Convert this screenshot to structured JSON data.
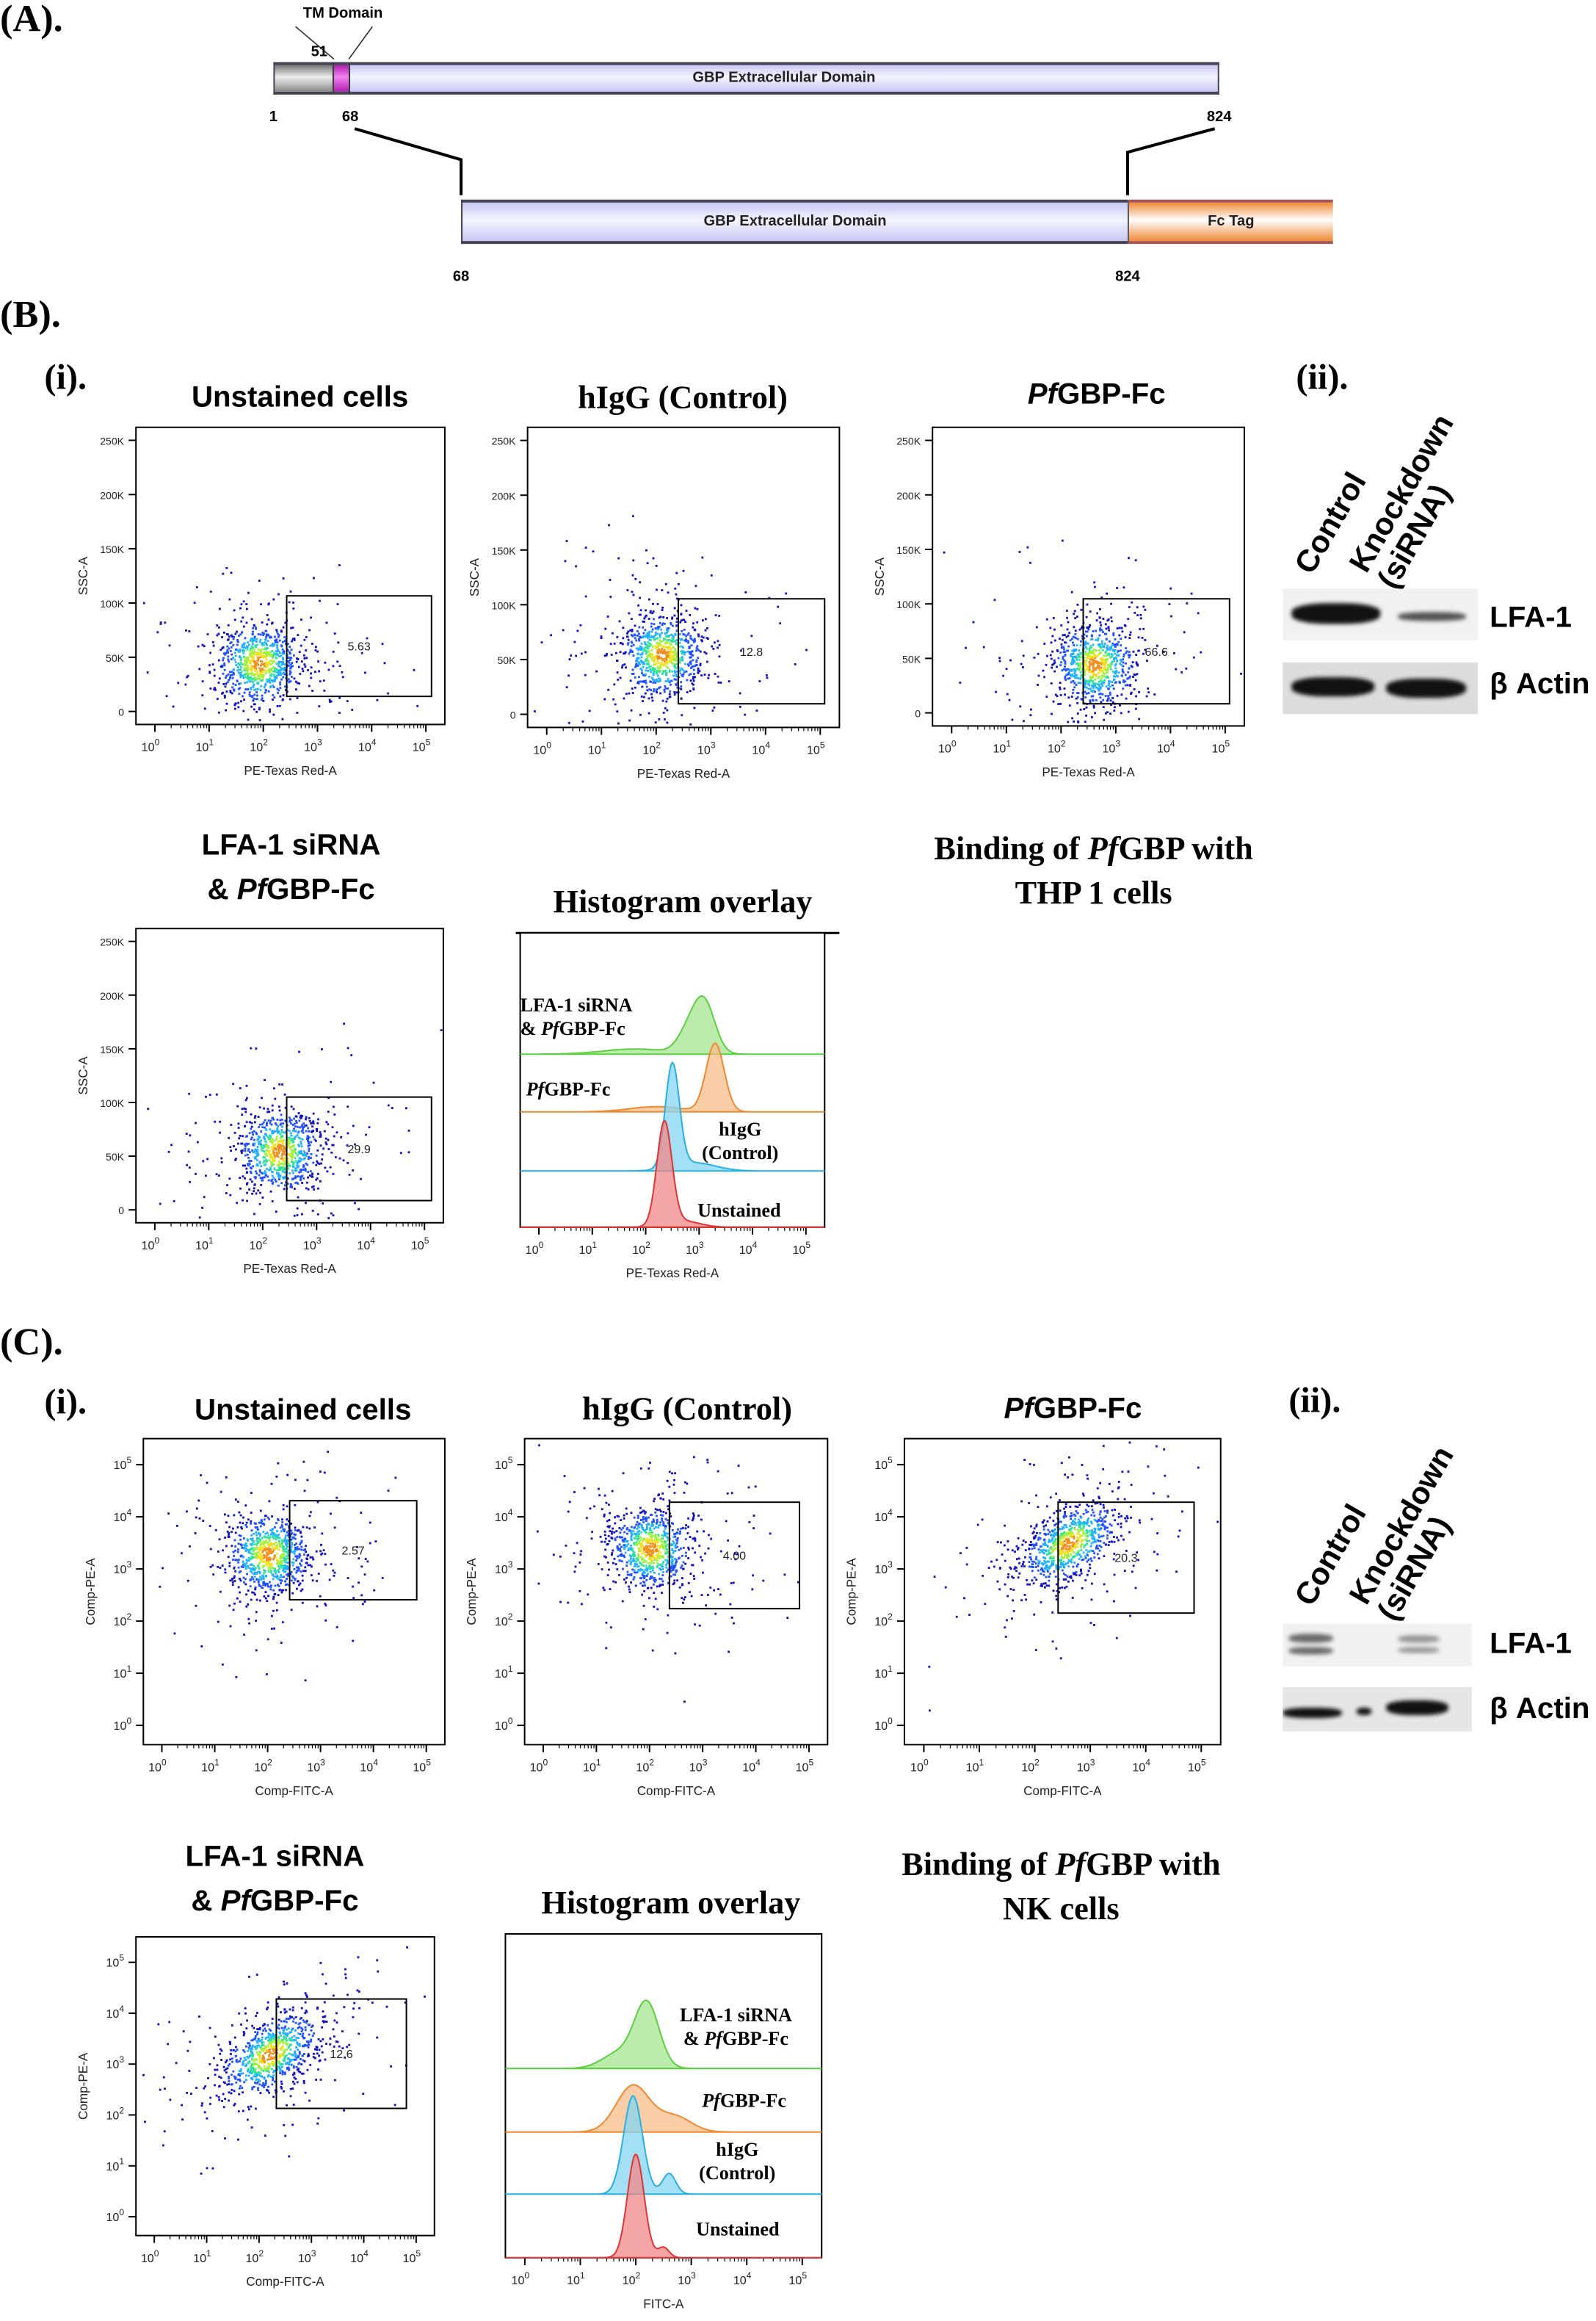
{
  "panel_a": {
    "label": "(A).",
    "tm_label": "TM Domain",
    "full_protein": {
      "start": "1",
      "tm_start": "51",
      "tm_end": "68",
      "end": "824",
      "domain_label": "GBP Extracellular Domain"
    },
    "construct": {
      "start": "68",
      "end": "824",
      "domain_label": "GBP Extracellular Domain",
      "tag_label": "Fc Tag"
    },
    "colors": {
      "signal": "#a8a8a8",
      "tm": "#d040d0",
      "extracellular": "#d8d8f8",
      "fc": "#f3a868"
    }
  },
  "panel_b": {
    "label": "(B).",
    "sub_i": "(i).",
    "sub_ii": "(ii).",
    "caption": {
      "line1_pre": "Binding of ",
      "line1_italic": "Pf",
      "line1_post": "GBP with",
      "line2": "THP 1 cells"
    },
    "blot": {
      "lane1": "Control",
      "lane2_line1": "Knockdown",
      "lane2_line2": "(siRNA)",
      "band1": "LFA-1",
      "band2": "β Actin"
    }
  },
  "panel_c": {
    "label": "(C).",
    "sub_i": "(i).",
    "sub_ii": "(ii).",
    "caption": {
      "line1_pre": "Binding of ",
      "line1_italic": "Pf",
      "line1_post": "GBP with",
      "line2": "NK cells"
    },
    "blot": {
      "lane1": "Control",
      "lane2_line1": "Knockdown",
      "lane2_line2": "(siRNA)",
      "band1": "LFA-1",
      "band2": "β Actin"
    }
  },
  "titles": {
    "unstained": "Unstained cells",
    "higg": "hIgG (Control)",
    "pf_italic": "Pf",
    "pf_post": "GBP-Fc",
    "lfa_line1": "LFA-1 siRNA",
    "lfa_line2_pre": "& ",
    "histogram": "Histogram overlay"
  },
  "chart_data": [
    {
      "id": "b-unstained",
      "type": "scatter",
      "xlabel": "PE-Texas Red-A",
      "ylabel": "SSC-A",
      "x_scale": "log",
      "x_tick_exponents": [
        0,
        1,
        2,
        3,
        4,
        5
      ],
      "y_ticks": [
        "0",
        "50K",
        "100K",
        "150K",
        "200K",
        "250K"
      ],
      "ylim": [
        0,
        262000
      ],
      "gate_percent": "5.63",
      "cluster_center": {
        "x_log10": 1.9,
        "y": 45000
      }
    },
    {
      "id": "b-higg",
      "type": "scatter",
      "xlabel": "PE-Texas Red-A",
      "ylabel": "SSC-A",
      "x_scale": "log",
      "x_tick_exponents": [
        0,
        1,
        2,
        3,
        4,
        5
      ],
      "y_ticks": [
        "0",
        "50K",
        "100K",
        "150K",
        "200K",
        "250K"
      ],
      "ylim": [
        0,
        262000
      ],
      "gate_percent": "12.8",
      "cluster_center": {
        "x_log10": 2.1,
        "y": 55000
      }
    },
    {
      "id": "b-pf",
      "type": "scatter",
      "xlabel": "PE-Texas Red-A",
      "ylabel": "SSC-A",
      "x_scale": "log",
      "x_tick_exponents": [
        0,
        1,
        2,
        3,
        4,
        5
      ],
      "y_ticks": [
        "0",
        "50K",
        "100K",
        "150K",
        "200K",
        "250K"
      ],
      "ylim": [
        0,
        262000
      ],
      "gate_percent": "66.6",
      "cluster_center": {
        "x_log10": 2.6,
        "y": 45000
      }
    },
    {
      "id": "b-lfa",
      "type": "scatter",
      "xlabel": "PE-Texas Red-A",
      "ylabel": "SSC-A",
      "x_scale": "log",
      "x_tick_exponents": [
        0,
        1,
        2,
        3,
        4,
        5
      ],
      "y_ticks": [
        "0",
        "50K",
        "100K",
        "150K",
        "200K",
        "250K"
      ],
      "ylim": [
        0,
        262000
      ],
      "gate_percent": "29.9",
      "cluster_center": {
        "x_log10": 2.3,
        "y": 55000
      }
    },
    {
      "id": "b-hist",
      "type": "area",
      "xlabel": "PE-Texas Red-A",
      "x_scale": "log",
      "x_tick_exponents": [
        0,
        1,
        2,
        3,
        4,
        5
      ],
      "series": [
        {
          "name": "Unstained",
          "color": "#f08888",
          "stroke": "#e03535",
          "peaks": [
            {
              "mean": 2.35,
              "sd": 0.14,
              "height": 1.0
            },
            {
              "mean": 2.7,
              "sd": 0.3,
              "height": 0.06
            }
          ]
        },
        {
          "name": "hIgG (Control)",
          "color": "#84d6f2",
          "stroke": "#28b0e0",
          "peaks": [
            {
              "mean": 2.5,
              "sd": 0.13,
              "height": 1.0
            },
            {
              "mean": 2.9,
              "sd": 0.4,
              "height": 0.08
            }
          ]
        },
        {
          "name": "PfGBP-Fc",
          "color": "#f7be8a",
          "stroke": "#f08a30",
          "peaks": [
            {
              "mean": 3.3,
              "sd": 0.17,
              "height": 0.66
            },
            {
              "mean": 2.2,
              "sd": 0.5,
              "height": 0.05
            }
          ]
        },
        {
          "name": "LFA-1 siRNA & PfGBP-Fc",
          "color": "#a6e690",
          "stroke": "#5ccf40",
          "peaks": [
            {
              "mean": 3.1,
              "sd": 0.2,
              "height": 0.48
            },
            {
              "mean": 2.8,
              "sd": 0.2,
              "height": 0.2
            },
            {
              "mean": 1.8,
              "sd": 0.6,
              "height": 0.05
            }
          ]
        }
      ],
      "labels": {
        "unstained": "Unstained",
        "higg_line1": "hIgG",
        "higg_line2": "(Control)",
        "pf_italic": "Pf",
        "pf_post": "GBP-Fc",
        "lfa_line1": "LFA-1 siRNA",
        "lfa_line2_pre": "& "
      }
    },
    {
      "id": "c-unstained",
      "type": "scatter",
      "xlabel": "Comp-FITC-A",
      "ylabel": "Comp-PE-A",
      "x_scale": "log",
      "y_scale": "log",
      "x_tick_exponents": [
        0,
        1,
        2,
        3,
        4,
        5
      ],
      "y_tick_exponents": [
        0,
        1,
        2,
        3,
        4,
        5
      ],
      "gate_percent": "2.57",
      "cluster_center": {
        "x_log10": 2.0,
        "y_log10": 3.3
      }
    },
    {
      "id": "c-higg",
      "type": "scatter",
      "xlabel": "Comp-FITC-A",
      "ylabel": "Comp-PE-A",
      "x_scale": "log",
      "y_scale": "log",
      "x_tick_exponents": [
        0,
        1,
        2,
        3,
        4,
        5
      ],
      "y_tick_exponents": [
        0,
        1,
        2,
        3,
        4,
        5
      ],
      "gate_percent": "4.00",
      "cluster_center": {
        "x_log10": 2.0,
        "y_log10": 3.4
      }
    },
    {
      "id": "c-pf",
      "type": "scatter",
      "xlabel": "Comp-FITC-A",
      "ylabel": "Comp-PE-A",
      "x_scale": "log",
      "y_scale": "log",
      "x_tick_exponents": [
        0,
        1,
        2,
        3,
        4,
        5
      ],
      "y_tick_exponents": [
        0,
        1,
        2,
        3,
        4,
        5
      ],
      "gate_percent": "20.3",
      "cluster_center": {
        "x_log10": 2.6,
        "y_log10": 3.5
      }
    },
    {
      "id": "c-lfa",
      "type": "scatter",
      "xlabel": "Comp-FITC-A",
      "ylabel": "Comp-PE-A",
      "x_scale": "log",
      "y_scale": "log",
      "x_tick_exponents": [
        0,
        1,
        2,
        3,
        4,
        5
      ],
      "y_tick_exponents": [
        0,
        1,
        2,
        3,
        4,
        5
      ],
      "gate_percent": "12.6",
      "cluster_center": {
        "x_log10": 2.2,
        "y_log10": 3.2
      }
    },
    {
      "id": "c-hist",
      "type": "area",
      "xlabel": "FITC-A",
      "x_scale": "log",
      "x_tick_exponents": [
        0,
        1,
        2,
        3,
        4,
        5
      ],
      "series": [
        {
          "name": "Unstained",
          "color": "#f08888",
          "stroke": "#e03535",
          "peaks": [
            {
              "mean": 2.0,
              "sd": 0.15,
              "height": 1.0
            },
            {
              "mean": 2.5,
              "sd": 0.1,
              "height": 0.1
            }
          ]
        },
        {
          "name": "hIgG (Control)",
          "color": "#84d6f2",
          "stroke": "#28b0e0",
          "peaks": [
            {
              "mean": 1.95,
              "sd": 0.17,
              "height": 0.95
            },
            {
              "mean": 2.6,
              "sd": 0.12,
              "height": 0.2
            }
          ]
        },
        {
          "name": "PfGBP-Fc",
          "color": "#f7be8a",
          "stroke": "#f08a30",
          "peaks": [
            {
              "mean": 1.95,
              "sd": 0.3,
              "height": 0.45
            },
            {
              "mean": 2.7,
              "sd": 0.3,
              "height": 0.15
            }
          ]
        },
        {
          "name": "LFA-1 siRNA & PfGBP-Fc",
          "color": "#a6e690",
          "stroke": "#5ccf40",
          "peaks": [
            {
              "mean": 2.2,
              "sd": 0.22,
              "height": 0.62
            },
            {
              "mean": 1.7,
              "sd": 0.3,
              "height": 0.15
            }
          ]
        }
      ],
      "labels": {
        "unstained": "Unstained",
        "higg_line1": "hIgG",
        "higg_line2": "(Control)",
        "pf_italic": "Pf",
        "pf_post": "GBP-Fc",
        "lfa_line1": "LFA-1 siRNA",
        "lfa_line2_pre": "& "
      }
    }
  ]
}
